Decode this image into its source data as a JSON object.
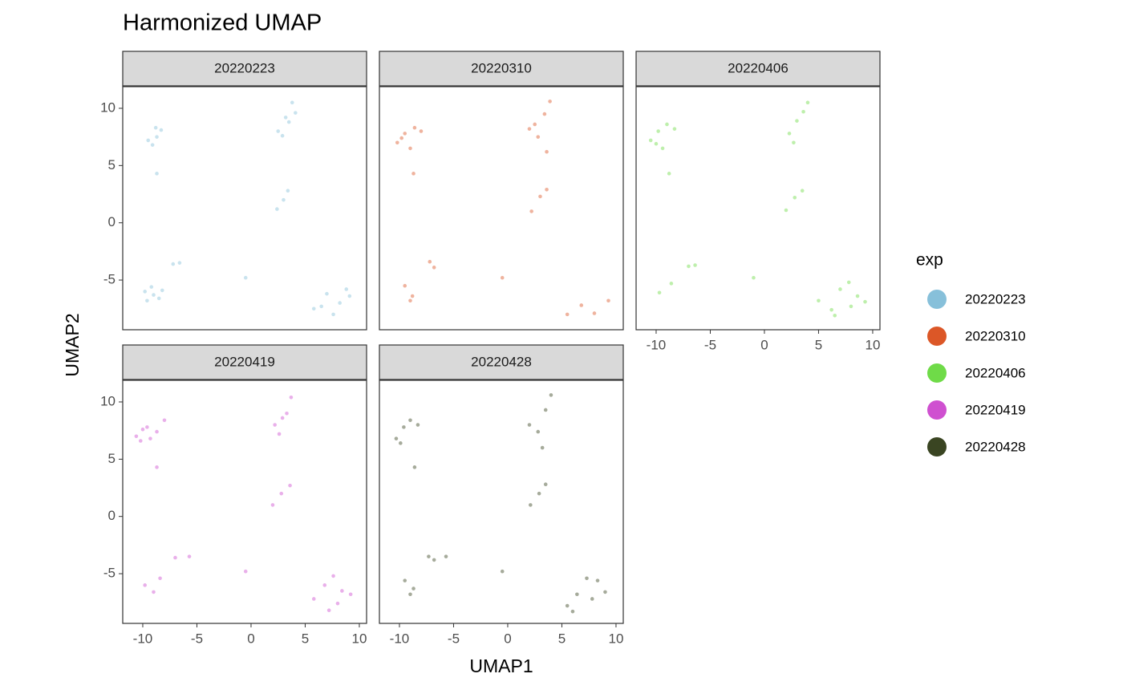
{
  "chart_data": {
    "type": "scatter",
    "title": "Harmonized UMAP",
    "xlabel": "UMAP1",
    "ylabel": "UMAP2",
    "legend_title": "exp",
    "xlim": [
      -11.85,
      10.67
    ],
    "ylim": [
      -9.34,
      11.89
    ],
    "xticks": [
      -10,
      -5,
      0,
      5,
      10
    ],
    "yticks": [
      -5,
      0,
      5,
      10
    ],
    "facets": [
      {
        "name": "20220223",
        "color": "#87c0da",
        "x": [
          -9.5,
          -8.8,
          -8.3,
          -9.1,
          -8.7,
          2.5,
          3.2,
          3.8,
          2.9,
          3.5,
          4.1,
          2.4,
          3.0,
          3.4,
          -8.7,
          -9.8,
          -9.2,
          -8.5,
          -9.0,
          -8.2,
          -9.6,
          -7.2,
          -6.6,
          -0.5,
          5.8,
          7.0,
          8.2,
          9.1,
          7.6,
          6.5,
          8.8
        ],
        "y": [
          7.2,
          8.3,
          8.1,
          6.8,
          7.5,
          8.0,
          9.2,
          10.5,
          7.6,
          8.8,
          9.6,
          1.2,
          2.0,
          2.8,
          4.3,
          -6.0,
          -5.6,
          -6.6,
          -6.3,
          -5.9,
          -6.8,
          -3.6,
          -3.5,
          -4.8,
          -7.5,
          -6.2,
          -7.0,
          -6.4,
          -8.0,
          -7.3,
          -5.8
        ]
      },
      {
        "name": "20220310",
        "color": "#dc5727",
        "x": [
          -10.2,
          -9.5,
          -8.6,
          -8.0,
          -9.0,
          -9.8,
          2.0,
          2.8,
          3.4,
          3.9,
          2.5,
          3.6,
          2.2,
          3.0,
          3.6,
          -8.7,
          -9.5,
          -8.8,
          -9.0,
          -7.2,
          -6.8,
          -0.5,
          5.5,
          6.8,
          8.0,
          9.3
        ],
        "y": [
          7.0,
          7.8,
          8.3,
          8.0,
          6.5,
          7.4,
          8.2,
          7.5,
          9.5,
          10.6,
          8.6,
          6.2,
          1.0,
          2.3,
          2.9,
          4.3,
          -5.5,
          -6.4,
          -6.8,
          -3.4,
          -3.9,
          -4.8,
          -8.0,
          -7.2,
          -7.9,
          -6.8
        ]
      },
      {
        "name": "20220406",
        "color": "#6fdb48",
        "x": [
          -10.5,
          -9.8,
          -9.0,
          -8.3,
          -9.4,
          -10.0,
          2.3,
          3.0,
          3.6,
          4.0,
          2.7,
          2.0,
          2.8,
          3.5,
          -8.8,
          -9.7,
          -8.6,
          -7.0,
          -6.4,
          -1.0,
          5.0,
          6.2,
          7.0,
          7.8,
          8.6,
          9.3,
          6.5,
          8.0
        ],
        "y": [
          7.2,
          8.0,
          8.6,
          8.2,
          6.5,
          6.9,
          7.8,
          8.9,
          9.7,
          10.5,
          7.0,
          1.1,
          2.2,
          2.8,
          4.3,
          -6.1,
          -5.3,
          -3.8,
          -3.7,
          -4.8,
          -6.8,
          -7.6,
          -5.8,
          -5.2,
          -6.4,
          -6.9,
          -8.1,
          -7.3
        ]
      },
      {
        "name": "20220419",
        "color": "#cf50d0",
        "x": [
          -10.6,
          -10.0,
          -9.3,
          -8.7,
          -10.2,
          -9.6,
          -8.0,
          2.2,
          2.9,
          3.7,
          2.6,
          3.3,
          2.0,
          2.8,
          3.6,
          -8.7,
          -9.8,
          -9.0,
          -8.4,
          -7.0,
          -5.7,
          -0.5,
          5.8,
          6.8,
          7.6,
          8.4,
          9.2,
          7.2,
          8.0
        ],
        "y": [
          7.0,
          7.6,
          6.8,
          7.4,
          6.6,
          7.8,
          8.4,
          8.0,
          8.6,
          10.4,
          7.2,
          9.0,
          1.0,
          2.0,
          2.7,
          4.3,
          -6.0,
          -6.6,
          -5.4,
          -3.6,
          -3.5,
          -4.8,
          -7.2,
          -6.0,
          -5.2,
          -6.5,
          -6.8,
          -8.2,
          -7.6
        ]
      },
      {
        "name": "20220428",
        "color": "#3a4522",
        "x": [
          -10.3,
          -9.6,
          -9.0,
          -8.3,
          -9.9,
          2.0,
          2.8,
          3.5,
          4.0,
          3.2,
          2.1,
          2.9,
          3.5,
          -8.6,
          -9.5,
          -8.7,
          -9.0,
          -7.3,
          -6.8,
          -5.7,
          -0.5,
          5.5,
          6.4,
          7.3,
          8.3,
          9.0,
          6.0,
          7.8
        ],
        "y": [
          6.8,
          7.8,
          8.4,
          8.0,
          6.4,
          8.0,
          7.4,
          9.3,
          10.6,
          6.0,
          1.0,
          2.0,
          2.8,
          4.3,
          -5.6,
          -6.3,
          -6.8,
          -3.5,
          -3.8,
          -3.5,
          -4.8,
          -7.8,
          -6.8,
          -5.4,
          -5.6,
          -6.6,
          -8.3,
          -7.2
        ]
      }
    ]
  }
}
